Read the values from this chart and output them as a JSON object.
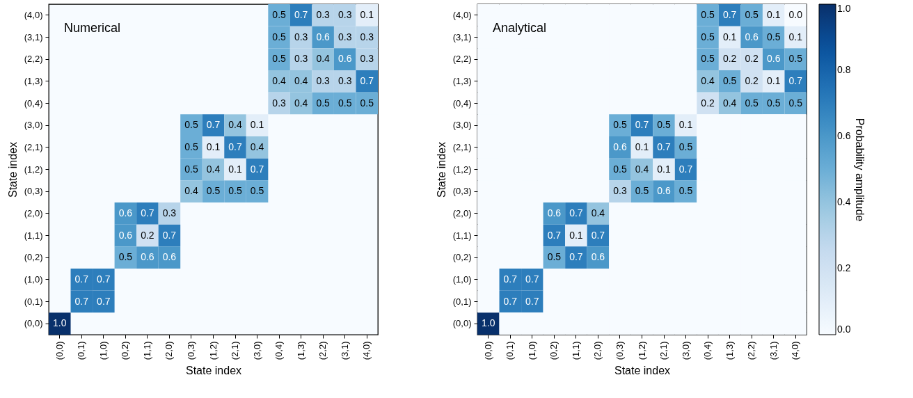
{
  "chart_data": [
    {
      "type": "heatmap",
      "title": "Numerical",
      "xlabel": "State index",
      "ylabel": "State index",
      "categories": [
        "(0,0)",
        "(0,1)",
        "(1,0)",
        "(0,2)",
        "(1,1)",
        "(2,0)",
        "(0,3)",
        "(1,2)",
        "(2,1)",
        "(3,0)",
        "(0,4)",
        "(1,3)",
        "(2,2)",
        "(3,1)",
        "(4,0)"
      ],
      "y_categories": [
        "(4,0)",
        "(3,1)",
        "(2,2)",
        "(1,3)",
        "(0,4)",
        "(3,0)",
        "(2,1)",
        "(1,2)",
        "(0,3)",
        "(2,0)",
        "(1,1)",
        "(0,2)",
        "(1,0)",
        "(0,1)",
        "(0,0)"
      ],
      "cells": [
        [
          null,
          null,
          null,
          null,
          null,
          null,
          null,
          null,
          null,
          null,
          0.5,
          0.7,
          0.3,
          0.3,
          0.1
        ],
        [
          null,
          null,
          null,
          null,
          null,
          null,
          null,
          null,
          null,
          null,
          0.5,
          0.3,
          0.6,
          0.3,
          0.3
        ],
        [
          null,
          null,
          null,
          null,
          null,
          null,
          null,
          null,
          null,
          null,
          0.5,
          0.3,
          0.4,
          0.6,
          0.3
        ],
        [
          null,
          null,
          null,
          null,
          null,
          null,
          null,
          null,
          null,
          null,
          0.4,
          0.4,
          0.3,
          0.3,
          0.7
        ],
        [
          null,
          null,
          null,
          null,
          null,
          null,
          null,
          null,
          null,
          null,
          0.3,
          0.4,
          0.5,
          0.5,
          0.5
        ],
        [
          null,
          null,
          null,
          null,
          null,
          null,
          0.5,
          0.7,
          0.4,
          0.1,
          null,
          null,
          null,
          null,
          null
        ],
        [
          null,
          null,
          null,
          null,
          null,
          null,
          0.5,
          0.1,
          0.7,
          0.4,
          null,
          null,
          null,
          null,
          null
        ],
        [
          null,
          null,
          null,
          null,
          null,
          null,
          0.5,
          0.4,
          0.1,
          0.7,
          null,
          null,
          null,
          null,
          null
        ],
        [
          null,
          null,
          null,
          null,
          null,
          null,
          0.4,
          0.5,
          0.5,
          0.5,
          null,
          null,
          null,
          null,
          null
        ],
        [
          null,
          null,
          null,
          0.6,
          0.7,
          0.3,
          null,
          null,
          null,
          null,
          null,
          null,
          null,
          null,
          null
        ],
        [
          null,
          null,
          null,
          0.6,
          0.2,
          0.7,
          null,
          null,
          null,
          null,
          null,
          null,
          null,
          null,
          null
        ],
        [
          null,
          null,
          null,
          0.5,
          0.6,
          0.6,
          null,
          null,
          null,
          null,
          null,
          null,
          null,
          null,
          null
        ],
        [
          null,
          0.7,
          0.7,
          null,
          null,
          null,
          null,
          null,
          null,
          null,
          null,
          null,
          null,
          null,
          null
        ],
        [
          null,
          0.7,
          0.7,
          null,
          null,
          null,
          null,
          null,
          null,
          null,
          null,
          null,
          null,
          null,
          null
        ],
        [
          1.0,
          null,
          null,
          null,
          null,
          null,
          null,
          null,
          null,
          null,
          null,
          null,
          null,
          null,
          null
        ]
      ],
      "cell_labels": [
        [
          null,
          null,
          null,
          null,
          null,
          null,
          null,
          null,
          null,
          null,
          "0.5",
          "0.7",
          "0.3",
          "0.3",
          "0.1"
        ],
        [
          null,
          null,
          null,
          null,
          null,
          null,
          null,
          null,
          null,
          null,
          "0.5",
          "0.3",
          "0.6",
          "0.3",
          "0.3"
        ],
        [
          null,
          null,
          null,
          null,
          null,
          null,
          null,
          null,
          null,
          null,
          "0.5",
          "0.3",
          "0.4",
          "0.6",
          "0.3"
        ],
        [
          null,
          null,
          null,
          null,
          null,
          null,
          null,
          null,
          null,
          null,
          "0.4",
          "0.4",
          "0.3",
          "0.3",
          "0.7"
        ],
        [
          null,
          null,
          null,
          null,
          null,
          null,
          null,
          null,
          null,
          null,
          "0.3",
          "0.4",
          "0.5",
          "0.5",
          "0.5"
        ],
        [
          null,
          null,
          null,
          null,
          null,
          null,
          "0.5",
          "0.7",
          "0.4",
          "0.1",
          null,
          null,
          null,
          null,
          null
        ],
        [
          null,
          null,
          null,
          null,
          null,
          null,
          "0.5",
          "0.1",
          "0.7",
          "0.4",
          null,
          null,
          null,
          null,
          null
        ],
        [
          null,
          null,
          null,
          null,
          null,
          null,
          "0.5",
          "0.4",
          "0.1",
          "0.7",
          null,
          null,
          null,
          null,
          null
        ],
        [
          null,
          null,
          null,
          null,
          null,
          null,
          "0.4",
          "0.5",
          "0.5",
          "0.5",
          null,
          null,
          null,
          null,
          null
        ],
        [
          null,
          null,
          null,
          "0.6",
          "0.7",
          "0.3",
          null,
          null,
          null,
          null,
          null,
          null,
          null,
          null,
          null
        ],
        [
          null,
          null,
          null,
          "0.6",
          "0.2",
          "0.7",
          null,
          null,
          null,
          null,
          null,
          null,
          null,
          null,
          null
        ],
        [
          null,
          null,
          null,
          "0.5",
          "0.6",
          "0.6",
          null,
          null,
          null,
          null,
          null,
          null,
          null,
          null,
          null
        ],
        [
          null,
          "0.7",
          "0.7",
          null,
          null,
          null,
          null,
          null,
          null,
          null,
          null,
          null,
          null,
          null,
          null
        ],
        [
          null,
          "0.7",
          "0.7",
          null,
          null,
          null,
          null,
          null,
          null,
          null,
          null,
          null,
          null,
          null,
          null
        ],
        [
          "1.0",
          null,
          null,
          null,
          null,
          null,
          null,
          null,
          null,
          null,
          null,
          null,
          null,
          null,
          null
        ]
      ]
    },
    {
      "type": "heatmap",
      "title": "Analytical",
      "xlabel": "State index",
      "ylabel": "State index",
      "clabel": "Probability amplitude",
      "clim": [
        0,
        1
      ],
      "cticks": [
        {
          "value": 0,
          "label": "0.0"
        },
        {
          "value": 0.2,
          "label": "0.2"
        },
        {
          "value": 0.4,
          "label": "0.4"
        },
        {
          "value": 0.6,
          "label": "0.6"
        },
        {
          "value": 0.8,
          "label": "0.8"
        },
        {
          "value": 1,
          "label": "1.0"
        }
      ],
      "categories": [
        "(0,0)",
        "(0,1)",
        "(1,0)",
        "(0,2)",
        "(1,1)",
        "(2,0)",
        "(0,3)",
        "(1,2)",
        "(2,1)",
        "(3,0)",
        "(0,4)",
        "(1,3)",
        "(2,2)",
        "(3,1)",
        "(4,0)"
      ],
      "y_categories": [
        "(4,0)",
        "(3,1)",
        "(2,2)",
        "(1,3)",
        "(0,4)",
        "(3,0)",
        "(2,1)",
        "(1,2)",
        "(0,3)",
        "(2,0)",
        "(1,1)",
        "(0,2)",
        "(1,0)",
        "(0,1)",
        "(0,0)"
      ],
      "cells": [
        [
          0,
          0,
          0,
          0,
          0,
          0,
          0,
          0,
          0,
          0,
          0.5,
          0.7,
          0.5,
          0.1,
          0.0
        ],
        [
          0,
          0,
          0,
          0,
          0,
          0,
          0,
          0,
          0,
          0,
          0.5,
          0.1,
          0.6,
          0.5,
          0.1
        ],
        [
          0,
          0,
          0,
          0,
          0,
          0,
          0,
          0,
          0,
          0,
          0.5,
          0.2,
          0.2,
          0.6,
          0.5
        ],
        [
          0,
          0,
          0,
          0,
          0,
          0,
          0,
          0,
          0,
          0,
          0.4,
          0.5,
          0.2,
          0.1,
          0.7
        ],
        [
          0,
          0,
          0,
          0,
          0,
          0,
          0,
          0,
          0,
          0,
          0.2,
          0.4,
          0.5,
          0.5,
          0.5
        ],
        [
          0,
          0,
          0,
          0,
          0,
          0,
          0.5,
          0.7,
          0.5,
          0.1,
          0,
          0,
          0,
          0,
          0
        ],
        [
          0,
          0,
          0,
          0,
          0,
          0,
          0.6,
          0.1,
          0.7,
          0.5,
          0,
          0,
          0,
          0,
          0
        ],
        [
          0,
          0,
          0,
          0,
          0,
          0,
          0.5,
          0.4,
          0.1,
          0.7,
          0,
          0,
          0,
          0,
          0
        ],
        [
          0,
          0,
          0,
          0,
          0,
          0,
          0.3,
          0.5,
          0.6,
          0.5,
          0,
          0,
          0,
          0,
          0
        ],
        [
          0,
          0,
          0,
          0.6,
          0.7,
          0.4,
          0,
          0,
          0,
          0,
          0,
          0,
          0,
          0,
          0
        ],
        [
          0,
          0,
          0,
          0.7,
          0.1,
          0.7,
          0,
          0,
          0,
          0,
          0,
          0,
          0,
          0,
          0
        ],
        [
          0,
          0,
          0,
          0.5,
          0.7,
          0.6,
          0,
          0,
          0,
          0,
          0,
          0,
          0,
          0,
          0
        ],
        [
          0,
          0.7,
          0.7,
          0,
          0,
          0,
          0,
          0,
          0,
          0,
          0,
          0,
          0,
          0,
          0
        ],
        [
          0,
          0.7,
          0.7,
          0,
          0,
          0,
          0,
          0,
          0,
          0,
          0,
          0,
          0,
          0,
          0
        ],
        [
          1.0,
          0,
          0,
          0,
          0,
          0,
          0,
          0,
          0,
          0,
          0,
          0,
          0,
          0,
          0
        ]
      ],
      "cell_labels": [
        [
          null,
          null,
          null,
          null,
          null,
          null,
          null,
          null,
          null,
          null,
          "0.5",
          "0.7",
          "0.5",
          "0.1",
          "0.0"
        ],
        [
          null,
          null,
          null,
          null,
          null,
          null,
          null,
          null,
          null,
          null,
          "0.5",
          "0.1",
          "0.6",
          "0.5",
          "0.1"
        ],
        [
          null,
          null,
          null,
          null,
          null,
          null,
          null,
          null,
          null,
          null,
          "0.5",
          "0.2",
          "0.2",
          "0.6",
          "0.5"
        ],
        [
          null,
          null,
          null,
          null,
          null,
          null,
          null,
          null,
          null,
          null,
          "0.4",
          "0.5",
          "0.2",
          "0.1",
          "0.7"
        ],
        [
          null,
          null,
          null,
          null,
          null,
          null,
          null,
          null,
          null,
          null,
          "0.2",
          "0.4",
          "0.5",
          "0.5",
          "0.5"
        ],
        [
          null,
          null,
          null,
          null,
          null,
          null,
          "0.5",
          "0.7",
          "0.5",
          "0.1",
          null,
          null,
          null,
          null,
          null
        ],
        [
          null,
          null,
          null,
          null,
          null,
          null,
          "0.6",
          "0.1",
          "0.7",
          "0.5",
          null,
          null,
          null,
          null,
          null
        ],
        [
          null,
          null,
          null,
          null,
          null,
          null,
          "0.5",
          "0.4",
          "0.1",
          "0.7",
          null,
          null,
          null,
          null,
          null
        ],
        [
          null,
          null,
          null,
          null,
          null,
          null,
          "0.3",
          "0.5",
          "0.6",
          "0.5",
          null,
          null,
          null,
          null,
          null
        ],
        [
          null,
          null,
          null,
          "0.6",
          "0.7",
          "0.4",
          null,
          null,
          null,
          null,
          null,
          null,
          null,
          null,
          null
        ],
        [
          null,
          null,
          null,
          "0.7",
          "0.1",
          "0.7",
          null,
          null,
          null,
          null,
          null,
          null,
          null,
          null,
          null
        ],
        [
          null,
          null,
          null,
          "0.5",
          "0.7",
          "0.6",
          null,
          null,
          null,
          null,
          null,
          null,
          null,
          null,
          null
        ],
        [
          null,
          "0.7",
          "0.7",
          null,
          null,
          null,
          null,
          null,
          null,
          null,
          null,
          null,
          null,
          null,
          null
        ],
        [
          null,
          "0.7",
          "0.7",
          null,
          null,
          null,
          null,
          null,
          null,
          null,
          null,
          null,
          null,
          null,
          null
        ],
        [
          "1.0",
          null,
          null,
          null,
          null,
          null,
          null,
          null,
          null,
          null,
          null,
          null,
          null,
          null,
          null
        ]
      ]
    }
  ]
}
